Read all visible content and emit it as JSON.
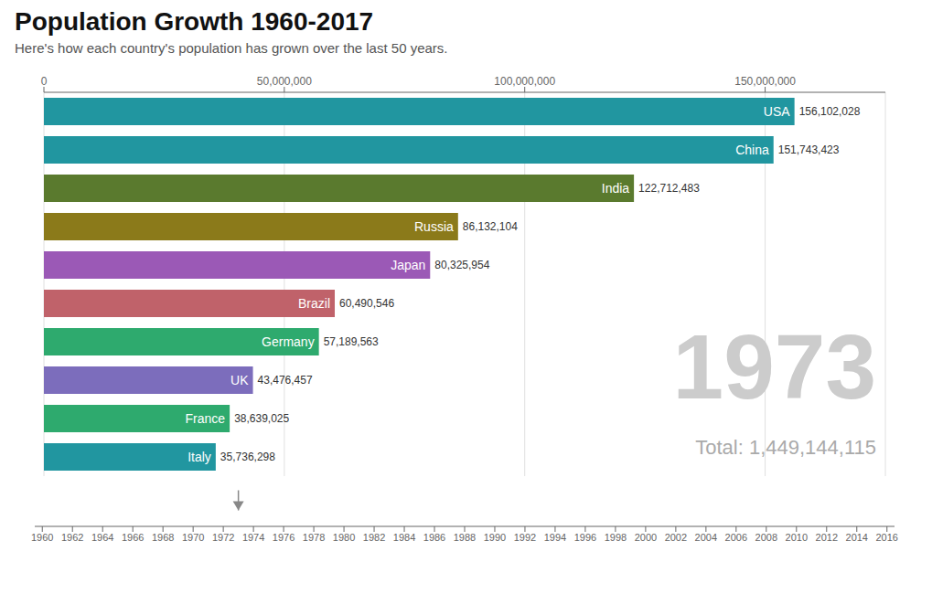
{
  "chart_data": [
    {
      "type": "bar",
      "orientation": "horizontal",
      "title": "Population Growth 1960-2017",
      "subtitle": "Here's how each country's population has grown over the last 50 years.",
      "annotations": [
        "1973",
        "Total: 1,449,144,115"
      ],
      "categories": [
        "USA",
        "China",
        "India",
        "Russia",
        "Japan",
        "Brazil",
        "Germany",
        "UK",
        "France",
        "Italy"
      ],
      "values": [
        156102028,
        151743423,
        122712483,
        86132104,
        80325954,
        60490546,
        57189563,
        43476457,
        38639025,
        35736298
      ],
      "value_labels": [
        "156,102,028",
        "151,743,423",
        "122,712,483",
        "86,132,104",
        "80,325,954",
        "60,490,546",
        "57,189,563",
        "43,476,457",
        "38,639,025",
        "35,736,298"
      ],
      "colors": [
        "#2196a0",
        "#2196a0",
        "#5a7a2e",
        "#8b7a1a",
        "#9b59b6",
        "#c0626a",
        "#2eaa6e",
        "#7c6dbc",
        "#2eaa6e",
        "#2196a0"
      ],
      "xlim": [
        0,
        175000000
      ],
      "xticks": [
        0,
        {
          "value": 50000000,
          "label": "50,000,000"
        },
        {
          "value": 100000000,
          "label": "100,000,000"
        },
        {
          "value": 150000000,
          "label": "150,000,000"
        }
      ],
      "grid": true,
      "data_labels": true
    },
    {
      "type": "timeline",
      "xlim": [
        1959.5,
        2016.5
      ],
      "xticks": [
        1960,
        1962,
        1964,
        1966,
        1968,
        1970,
        1972,
        1974,
        1976,
        1978,
        1980,
        1982,
        1984,
        1986,
        1988,
        1990,
        1992,
        1994,
        1996,
        1998,
        2000,
        2002,
        2004,
        2006,
        2008,
        2010,
        2012,
        2014,
        2016
      ],
      "x": [
        1973
      ],
      "marker": "triangle"
    }
  ]
}
